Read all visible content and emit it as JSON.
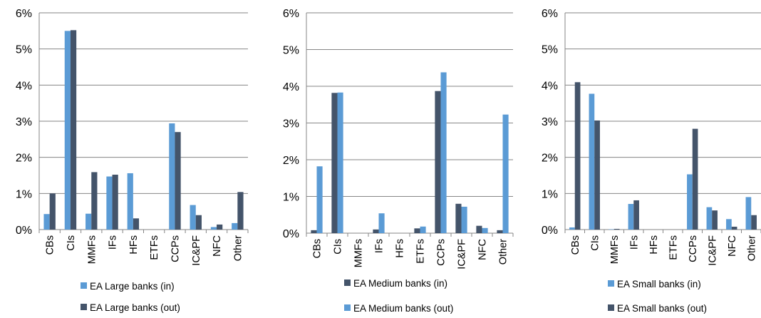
{
  "colors": {
    "light": "#5b9bd5",
    "dark": "#44546a"
  },
  "chart_data": [
    {
      "type": "bar",
      "categories": [
        "CBs",
        "CIs",
        "MMFs",
        "IFs",
        "HFs",
        "ETFs",
        "CCPs",
        "IC&PF",
        "NFC",
        "Other"
      ],
      "ylim": [
        0,
        6
      ],
      "yticks": [
        "0%",
        "1%",
        "2%",
        "3%",
        "4%",
        "5%",
        "6%"
      ],
      "grid": true,
      "legend": "bottom",
      "series": [
        {
          "name": "EA Large banks (in)",
          "color": "light",
          "values": [
            0.43,
            5.5,
            0.44,
            1.47,
            1.56,
            0.0,
            2.94,
            0.68,
            0.07,
            0.18
          ]
        },
        {
          "name": "EA Large banks (out)",
          "color": "dark",
          "values": [
            1.0,
            5.52,
            1.59,
            1.52,
            0.31,
            0.0,
            2.7,
            0.4,
            0.14,
            1.04
          ]
        }
      ]
    },
    {
      "type": "bar",
      "categories": [
        "CBs",
        "CIs",
        "MMFs",
        "IFs",
        "HFs",
        "ETFs",
        "CCPs",
        "IC&PF",
        "NFC",
        "Other"
      ],
      "ylim": [
        0,
        6
      ],
      "yticks": [
        "0%",
        "1%",
        "2%",
        "3%",
        "4%",
        "5%",
        "6%"
      ],
      "grid": true,
      "legend": "bottom",
      "series": [
        {
          "name": "EA Medium banks (in)",
          "color": "dark",
          "values": [
            0.08,
            3.82,
            0.0,
            0.1,
            0.0,
            0.13,
            3.87,
            0.8,
            0.2,
            0.08
          ]
        },
        {
          "name": "EA Medium banks (out)",
          "color": "light",
          "values": [
            1.82,
            3.83,
            0.0,
            0.54,
            0.0,
            0.18,
            4.38,
            0.72,
            0.14,
            3.23
          ]
        }
      ]
    },
    {
      "type": "bar",
      "categories": [
        "CBs",
        "CIs",
        "MMFs",
        "IFs",
        "HFs",
        "ETFs",
        "CCPs",
        "IC&PF",
        "NFC",
        "Other"
      ],
      "ylim": [
        0,
        6
      ],
      "yticks": [
        "0%",
        "1%",
        "2%",
        "3%",
        "4%",
        "5%",
        "6%"
      ],
      "grid": true,
      "legend": "bottom",
      "series": [
        {
          "name": "EA Small banks (in)",
          "color": "light",
          "values": [
            0.06,
            3.76,
            0.01,
            0.71,
            0.0,
            0.0,
            1.53,
            0.62,
            0.29,
            0.9
          ]
        },
        {
          "name": "EA Small banks (out)",
          "color": "dark",
          "values": [
            4.08,
            3.02,
            0.02,
            0.81,
            0.0,
            0.0,
            2.79,
            0.53,
            0.08,
            0.4
          ]
        }
      ]
    }
  ]
}
